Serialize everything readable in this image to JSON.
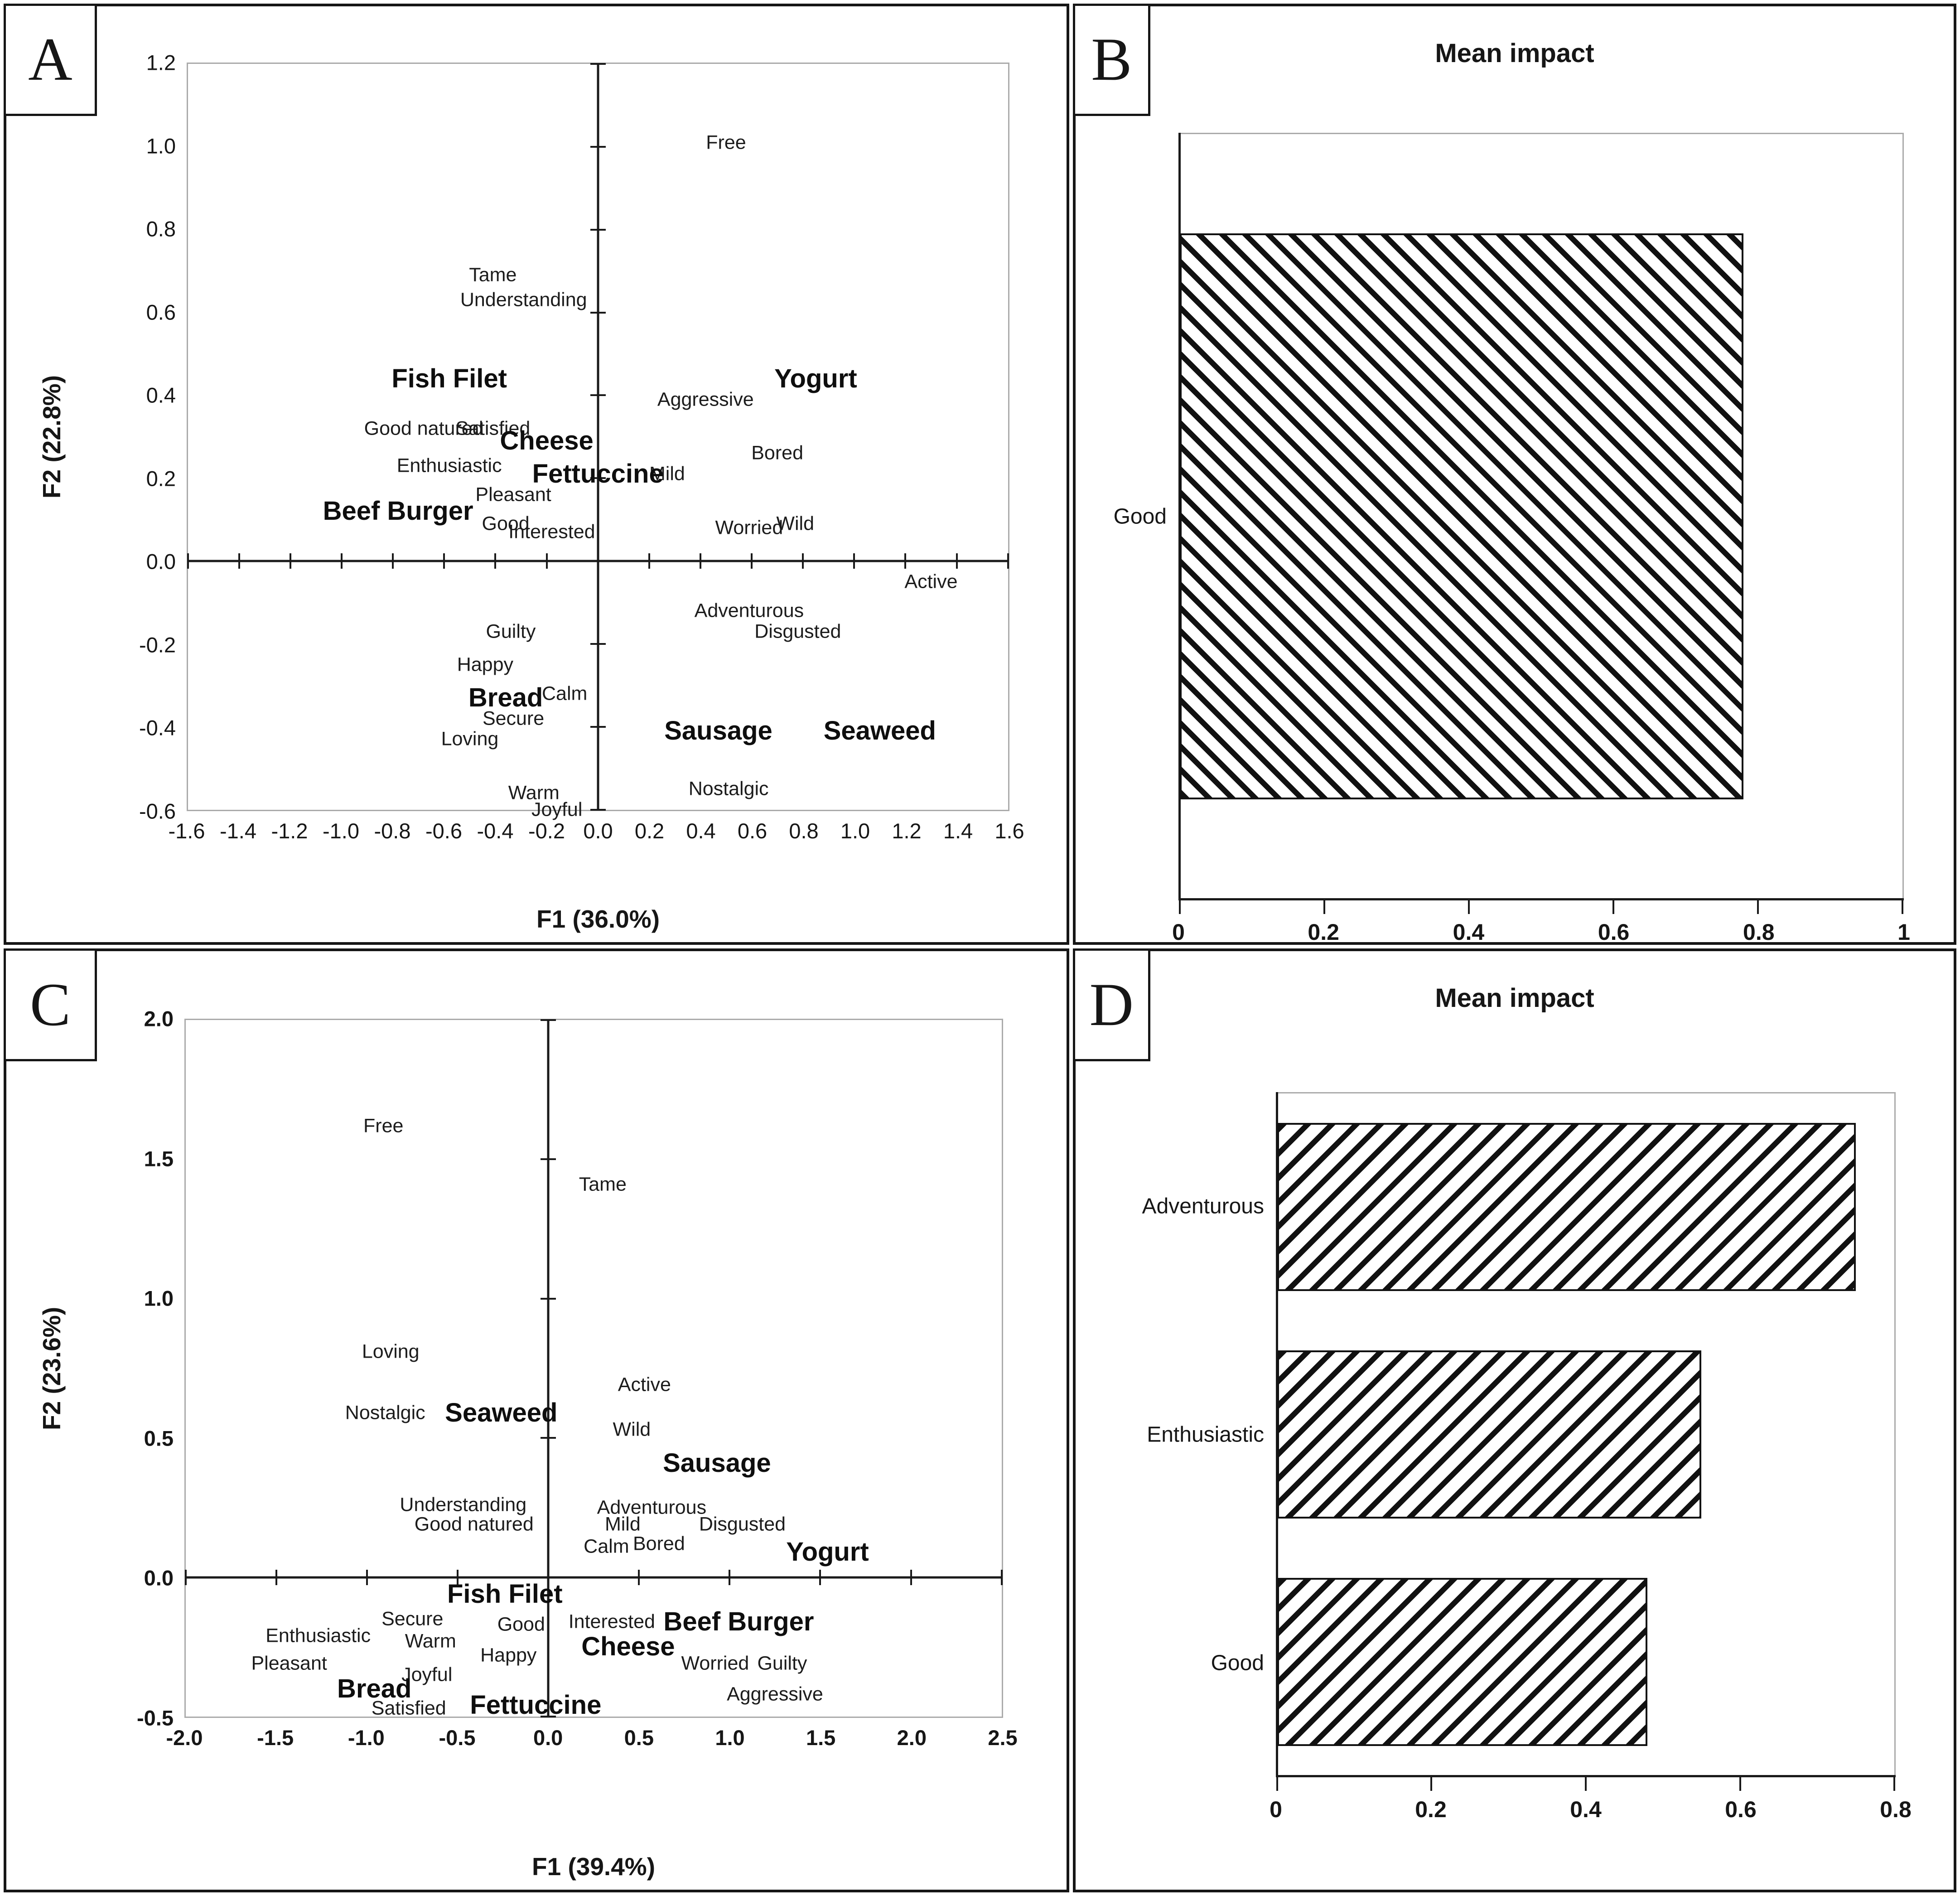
{
  "figure": {
    "ink_color": "#111111",
    "frame_color": "#ababab"
  },
  "chart_data": [
    {
      "panel": "A",
      "type": "scatter",
      "xlabel": "F1 (36.0%)",
      "ylabel": "F2 (22.8%)",
      "xlim": [
        -1.6,
        1.6
      ],
      "ylim": [
        -0.6,
        1.2
      ],
      "grid": false,
      "xticks": [
        "-1.6",
        "-1.4",
        "-1.2",
        "-1.0",
        "-0.8",
        "-0.6",
        "-0.4",
        "-0.2",
        "0.0",
        "0.2",
        "0.4",
        "0.6",
        "0.8",
        "1.0",
        "1.2",
        "1.4",
        "1.6"
      ],
      "yticks": [
        "1.2",
        "1.0",
        "0.8",
        "0.6",
        "0.4",
        "0.2",
        "0.0",
        "-0.2",
        "-0.4",
        "-0.6"
      ],
      "products": [
        {
          "label": "Fish Filet",
          "x": -0.58,
          "y": 0.44
        },
        {
          "label": "Yogurt",
          "x": 0.85,
          "y": 0.44
        },
        {
          "label": "Cheese",
          "x": -0.2,
          "y": 0.29
        },
        {
          "label": "Fettuccine",
          "x": 0.0,
          "y": 0.21
        },
        {
          "label": "Beef Burger",
          "x": -0.78,
          "y": 0.12
        },
        {
          "label": "Bread",
          "x": -0.36,
          "y": -0.33
        },
        {
          "label": "Sausage",
          "x": 0.47,
          "y": -0.41
        },
        {
          "label": "Seaweed",
          "x": 1.1,
          "y": -0.41
        }
      ],
      "emotions": [
        {
          "label": "Free",
          "x": 0.5,
          "y": 1.01
        },
        {
          "label": "Tame",
          "x": -0.41,
          "y": 0.69
        },
        {
          "label": "Understanding",
          "x": -0.29,
          "y": 0.63
        },
        {
          "label": "Aggressive",
          "x": 0.42,
          "y": 0.39
        },
        {
          "label": "Good natured",
          "x": -0.68,
          "y": 0.32
        },
        {
          "label": "Satisfied",
          "x": -0.41,
          "y": 0.32
        },
        {
          "label": "Bored",
          "x": 0.7,
          "y": 0.26
        },
        {
          "label": "Enthusiastic",
          "x": -0.58,
          "y": 0.23
        },
        {
          "label": "Mild",
          "x": 0.27,
          "y": 0.21
        },
        {
          "label": "Pleasant",
          "x": -0.33,
          "y": 0.16
        },
        {
          "label": "Good",
          "x": -0.36,
          "y": 0.09
        },
        {
          "label": "Interested",
          "x": -0.18,
          "y": 0.07
        },
        {
          "label": "Worried",
          "x": 0.59,
          "y": 0.08
        },
        {
          "label": "Wild",
          "x": 0.77,
          "y": 0.09
        },
        {
          "label": "Active",
          "x": 1.3,
          "y": -0.05
        },
        {
          "label": "Adventurous",
          "x": 0.59,
          "y": -0.12
        },
        {
          "label": "Guilty",
          "x": -0.34,
          "y": -0.17
        },
        {
          "label": "Disgusted",
          "x": 0.78,
          "y": -0.17
        },
        {
          "label": "Happy",
          "x": -0.44,
          "y": -0.25
        },
        {
          "label": "Calm",
          "x": -0.13,
          "y": -0.32
        },
        {
          "label": "Secure",
          "x": -0.33,
          "y": -0.38
        },
        {
          "label": "Loving",
          "x": -0.5,
          "y": -0.43
        },
        {
          "label": "Warm",
          "x": -0.25,
          "y": -0.56
        },
        {
          "label": "Joyful",
          "x": -0.16,
          "y": -0.6
        },
        {
          "label": "Nostalgic",
          "x": 0.51,
          "y": -0.55
        }
      ]
    },
    {
      "panel": "B",
      "type": "bar",
      "title": "Mean impact",
      "categories": [
        "Good"
      ],
      "values": [
        0.78
      ],
      "xlim": [
        0,
        1
      ],
      "xticks": [
        "0",
        "0.2",
        "0.4",
        "0.6",
        "0.8",
        "1"
      ],
      "hatch": "backslash",
      "legend": false
    },
    {
      "panel": "C",
      "type": "scatter",
      "xlabel": "F1 (39.4%)",
      "ylabel": "F2 (23.6%)",
      "xlim": [
        -2.0,
        2.5
      ],
      "ylim": [
        -0.5,
        2.0
      ],
      "grid": false,
      "xticks": [
        "-2.0",
        "-1.5",
        "-1.0",
        "-0.5",
        "0.0",
        "0.5",
        "1.0",
        "1.5",
        "2.0",
        "2.5"
      ],
      "yticks": [
        "2.0",
        "1.5",
        "1.0",
        "0.5",
        "0.0",
        "-0.5"
      ],
      "products": [
        {
          "label": "Seaweed",
          "x": -0.26,
          "y": 0.59
        },
        {
          "label": "Sausage",
          "x": 0.93,
          "y": 0.41
        },
        {
          "label": "Yogurt",
          "x": 1.54,
          "y": 0.09
        },
        {
          "label": "Fish Filet",
          "x": -0.24,
          "y": -0.06
        },
        {
          "label": "Beef Burger",
          "x": 1.05,
          "y": -0.16
        },
        {
          "label": "Cheese",
          "x": 0.44,
          "y": -0.25
        },
        {
          "label": "Bread",
          "x": -0.96,
          "y": -0.4
        },
        {
          "label": "Fettuccine",
          "x": -0.07,
          "y": -0.46
        }
      ],
      "emotions": [
        {
          "label": "Free",
          "x": -0.91,
          "y": 1.62
        },
        {
          "label": "Tame",
          "x": 0.3,
          "y": 1.41
        },
        {
          "label": "Loving",
          "x": -0.87,
          "y": 0.81
        },
        {
          "label": "Active",
          "x": 0.53,
          "y": 0.69
        },
        {
          "label": "Nostalgic",
          "x": -0.9,
          "y": 0.59
        },
        {
          "label": "Wild",
          "x": 0.46,
          "y": 0.53
        },
        {
          "label": "Understanding",
          "x": -0.47,
          "y": 0.26
        },
        {
          "label": "Adventurous",
          "x": 0.57,
          "y": 0.25
        },
        {
          "label": "Good natured",
          "x": -0.41,
          "y": 0.19
        },
        {
          "label": "Mild",
          "x": 0.41,
          "y": 0.19
        },
        {
          "label": "Disgusted",
          "x": 1.07,
          "y": 0.19
        },
        {
          "label": "Calm",
          "x": 0.32,
          "y": 0.11
        },
        {
          "label": "Bored",
          "x": 0.61,
          "y": 0.12
        },
        {
          "label": "Secure",
          "x": -0.75,
          "y": -0.15
        },
        {
          "label": "Good",
          "x": -0.15,
          "y": -0.17
        },
        {
          "label": "Interested",
          "x": 0.35,
          "y": -0.16
        },
        {
          "label": "Enthusiastic",
          "x": -1.27,
          "y": -0.21
        },
        {
          "label": "Warm",
          "x": -0.65,
          "y": -0.23
        },
        {
          "label": "Happy",
          "x": -0.22,
          "y": -0.28
        },
        {
          "label": "Pleasant",
          "x": -1.43,
          "y": -0.31
        },
        {
          "label": "Worried",
          "x": 0.92,
          "y": -0.31
        },
        {
          "label": "Guilty",
          "x": 1.29,
          "y": -0.31
        },
        {
          "label": "Joyful",
          "x": -0.67,
          "y": -0.35
        },
        {
          "label": "Aggressive",
          "x": 1.25,
          "y": -0.42
        },
        {
          "label": "Satisfied",
          "x": -0.77,
          "y": -0.47
        }
      ]
    },
    {
      "panel": "D",
      "type": "bar",
      "title": "Mean impact",
      "categories": [
        "Adventurous",
        "Enthusiastic",
        "Good"
      ],
      "values": [
        0.75,
        0.55,
        0.48
      ],
      "xlim": [
        0,
        0.8
      ],
      "xticks": [
        "0",
        "0.2",
        "0.4",
        "0.6",
        "0.8"
      ],
      "hatch": "slash",
      "legend": false
    }
  ]
}
